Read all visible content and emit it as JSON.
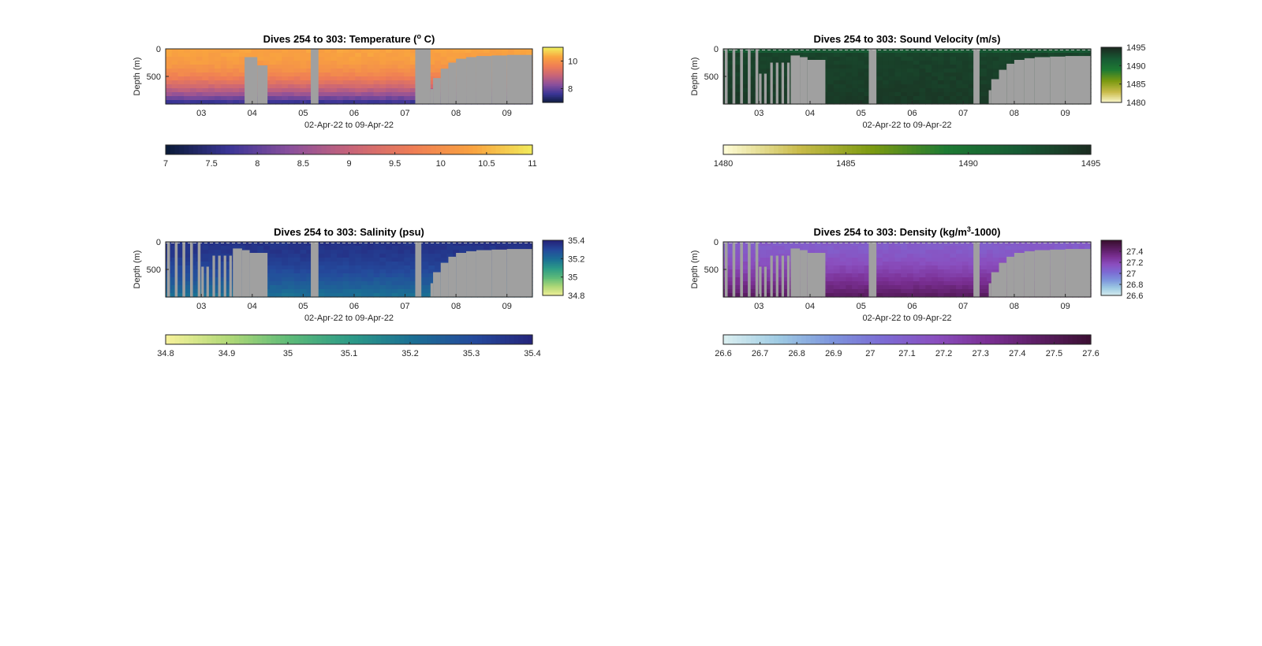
{
  "chart_data": [
    {
      "type": "heatmap",
      "title": "Dives 254 to 303: Temperature (°C)",
      "title_parts": [
        "Dives 254 to 303: Temperature (",
        "o",
        " C)"
      ],
      "ylabel": "Depth (m)",
      "xlabel": "02-Apr-22 to 09-Apr-22",
      "x_ticks": [
        "03",
        "04",
        "05",
        "06",
        "07",
        "08",
        "09"
      ],
      "x_range": [
        2.3,
        9.5
      ],
      "y_ticks": [
        "0",
        "500"
      ],
      "y_range": [
        0,
        1000
      ],
      "y_reversed": true,
      "colorbar_ticks": [
        "10",
        "8"
      ],
      "colorbar_range": [
        7,
        11
      ],
      "horizontal_colorbar_ticks": [
        "7",
        "7.5",
        "8",
        "8.5",
        "9",
        "9.5",
        "10",
        "10.5",
        "11"
      ],
      "colors": [
        "#0b1b3a",
        "#3a3596",
        "#8a4f9c",
        "#c86478",
        "#ef7d55",
        "#f9a33f",
        "#f1ee5c"
      ],
      "fill_color": "#a0a0a0",
      "top_dashed_line": false,
      "profile_start_days": [
        2.3,
        3.85,
        5.2,
        7.3,
        7.5
      ],
      "surface_values": [
        10.3,
        10.4,
        10.3,
        10.2,
        10.3
      ],
      "bottom_values": [
        7.7,
        7.6,
        7.7,
        7.7,
        7.7
      ],
      "gap_intervals": [
        [
          3.85,
          4.3
        ],
        [
          5.15,
          5.3
        ],
        [
          7.2,
          7.32
        ],
        [
          7.5,
          9.5
        ]
      ]
    },
    {
      "type": "heatmap",
      "title": "Dives 254 to 303: Sound Velocity (m/s)",
      "ylabel": "Depth (m)",
      "xlabel": "02-Apr-22 to 09-Apr-22",
      "x_ticks": [
        "03",
        "04",
        "05",
        "06",
        "07",
        "08",
        "09"
      ],
      "x_range": [
        2.3,
        9.5
      ],
      "y_ticks": [
        "0",
        "500"
      ],
      "y_range": [
        0,
        1000
      ],
      "y_reversed": true,
      "colorbar_ticks": [
        "1495",
        "1490",
        "1485",
        "1480"
      ],
      "colorbar_range": [
        1480,
        1495
      ],
      "horizontal_colorbar_ticks": [
        "1480",
        "1485",
        "1490",
        "1495"
      ],
      "colors": [
        "#fdfbd4",
        "#c9bb4a",
        "#7b9a11",
        "#1d7a33",
        "#175a34",
        "#1b2a20"
      ],
      "fill_color": "#a0a0a0",
      "top_dashed_line": true,
      "surface_values": [
        1492,
        1492,
        1492,
        1492
      ],
      "bottom_values": [
        1494,
        1494,
        1494,
        1494
      ],
      "gap_intervals": [
        [
          3.8,
          4.3
        ],
        [
          5.15,
          5.3
        ],
        [
          7.2,
          7.32
        ],
        [
          7.5,
          9.5
        ]
      ]
    },
    {
      "type": "heatmap",
      "title": "Dives 254 to 303: Salinity (psu)",
      "ylabel": "Depth (m)",
      "xlabel": "02-Apr-22 to 09-Apr-22",
      "x_ticks": [
        "03",
        "04",
        "05",
        "06",
        "07",
        "08",
        "09"
      ],
      "x_range": [
        2.3,
        9.5
      ],
      "y_ticks": [
        "0",
        "500"
      ],
      "y_range": [
        0,
        1000
      ],
      "y_reversed": true,
      "colorbar_ticks": [
        "35.4",
        "35.2",
        "35",
        "34.8"
      ],
      "colorbar_range": [
        34.8,
        35.4
      ],
      "horizontal_colorbar_ticks": [
        "34.8",
        "34.9",
        "35",
        "35.1",
        "35.2",
        "35.3",
        "35.4"
      ],
      "colors": [
        "#f5f19a",
        "#b0d877",
        "#5cba78",
        "#2c9a87",
        "#1b6f94",
        "#244a9c",
        "#25237a"
      ],
      "fill_color": "#a0a0a0",
      "top_dashed_line": true,
      "surface_values": [
        35.36,
        35.36,
        35.36,
        35.36
      ],
      "bottom_values": [
        35.2,
        35.2,
        35.2,
        35.2
      ],
      "gap_intervals": [
        [
          3.8,
          4.3
        ],
        [
          5.15,
          5.3
        ],
        [
          7.2,
          7.32
        ],
        [
          7.5,
          9.5
        ]
      ]
    },
    {
      "type": "heatmap",
      "title": "Dives 254 to 303: Density (kg/m³-1000)",
      "title_parts": [
        "Dives 254 to 303: Density (kg/m",
        "3",
        "-1000)"
      ],
      "ylabel": "Depth (m)",
      "xlabel": "02-Apr-22 to 09-Apr-22",
      "x_ticks": [
        "03",
        "04",
        "05",
        "06",
        "07",
        "08",
        "09"
      ],
      "x_range": [
        2.3,
        9.5
      ],
      "y_ticks": [
        "0",
        "500"
      ],
      "y_range": [
        0,
        1000
      ],
      "y_reversed": true,
      "colorbar_ticks": [
        "27.4",
        "27.2",
        "27",
        "26.8",
        "26.6"
      ],
      "colorbar_range": [
        26.6,
        27.6
      ],
      "horizontal_colorbar_ticks": [
        "26.6",
        "26.7",
        "26.8",
        "26.9",
        "27",
        "27.1",
        "27.2",
        "27.3",
        "27.4",
        "27.5",
        "27.6"
      ],
      "colors": [
        "#d9eef0",
        "#9fcbe3",
        "#7d96dc",
        "#7c6bd4",
        "#8a4fbf",
        "#7a2f93",
        "#5a1d61",
        "#3a0f30"
      ],
      "fill_color": "#a0a0a0",
      "top_dashed_line": true,
      "surface_values": [
        27.1,
        27.1,
        27.1,
        27.1
      ],
      "bottom_values": [
        27.45,
        27.45,
        27.45,
        27.45
      ],
      "gap_intervals": [
        [
          3.8,
          4.3
        ],
        [
          5.15,
          5.3
        ],
        [
          7.2,
          7.32
        ],
        [
          7.5,
          9.5
        ]
      ]
    }
  ]
}
